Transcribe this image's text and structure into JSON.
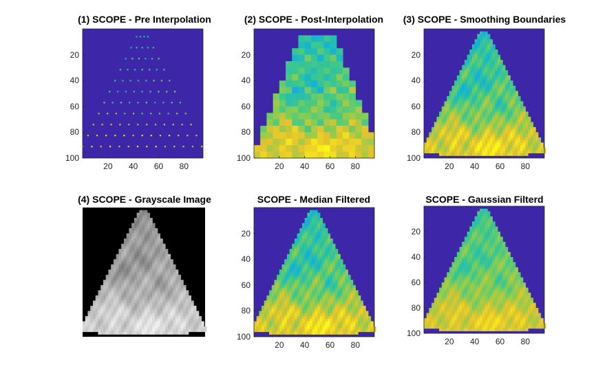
{
  "figure": {
    "background": "#ffffff",
    "colors": {
      "parula_background": "#3e26a8",
      "gray_background": "#000000"
    }
  },
  "chart_data": [
    {
      "type": "heatmap",
      "id": "p1",
      "title": "(1) SCOPE - Pre Interpolation",
      "colormap": "parula",
      "mode": "points",
      "xlim": [
        0,
        95
      ],
      "ylim": [
        0,
        100
      ],
      "xticks": [
        20,
        40,
        60,
        80
      ],
      "yticks": [
        20,
        40,
        60,
        80,
        100
      ],
      "show_axis_ticks": true
    },
    {
      "type": "heatmap",
      "id": "p2",
      "title": "(2) SCOPE - Post-Interpolation",
      "colormap": "parula",
      "mode": "blocky",
      "xlim": [
        0,
        95
      ],
      "ylim": [
        0,
        100
      ],
      "xticks": [
        20,
        40,
        60,
        80
      ],
      "yticks": [
        20,
        40,
        60,
        80,
        100
      ],
      "show_axis_ticks": true
    },
    {
      "type": "heatmap",
      "id": "p3",
      "title": "(3) SCOPE - Smoothing Boundaries",
      "colormap": "parula",
      "mode": "fan",
      "xlim": [
        0,
        95
      ],
      "ylim": [
        0,
        100
      ],
      "xticks": [
        20,
        40,
        60,
        80
      ],
      "yticks": [
        20,
        40,
        60,
        80,
        100
      ],
      "show_axis_ticks": true
    },
    {
      "type": "heatmap",
      "id": "p4",
      "title": "(4) SCOPE - Grayscale Image",
      "colormap": "gray",
      "mode": "fan",
      "xlim": [
        0,
        95
      ],
      "ylim": [
        0,
        100
      ],
      "xticks": [],
      "yticks": [],
      "show_axis_ticks": false
    },
    {
      "type": "heatmap",
      "id": "p5",
      "title": "SCOPE - Median Filtered",
      "colormap": "parula",
      "mode": "fan-median",
      "xlim": [
        0,
        95
      ],
      "ylim": [
        0,
        100
      ],
      "xticks": [
        20,
        40,
        60,
        80
      ],
      "yticks": [
        20,
        40,
        60,
        80,
        100
      ],
      "show_axis_ticks": true
    },
    {
      "type": "heatmap",
      "id": "p6",
      "title": "SCOPE - Gaussian Filterd",
      "colormap": "parula",
      "mode": "fan-gauss",
      "xlim": [
        0,
        95
      ],
      "ylim": [
        0,
        100
      ],
      "xticks": [
        20,
        40,
        60,
        80
      ],
      "yticks": [
        20,
        40,
        60,
        80,
        100
      ],
      "show_axis_ticks": true
    }
  ]
}
